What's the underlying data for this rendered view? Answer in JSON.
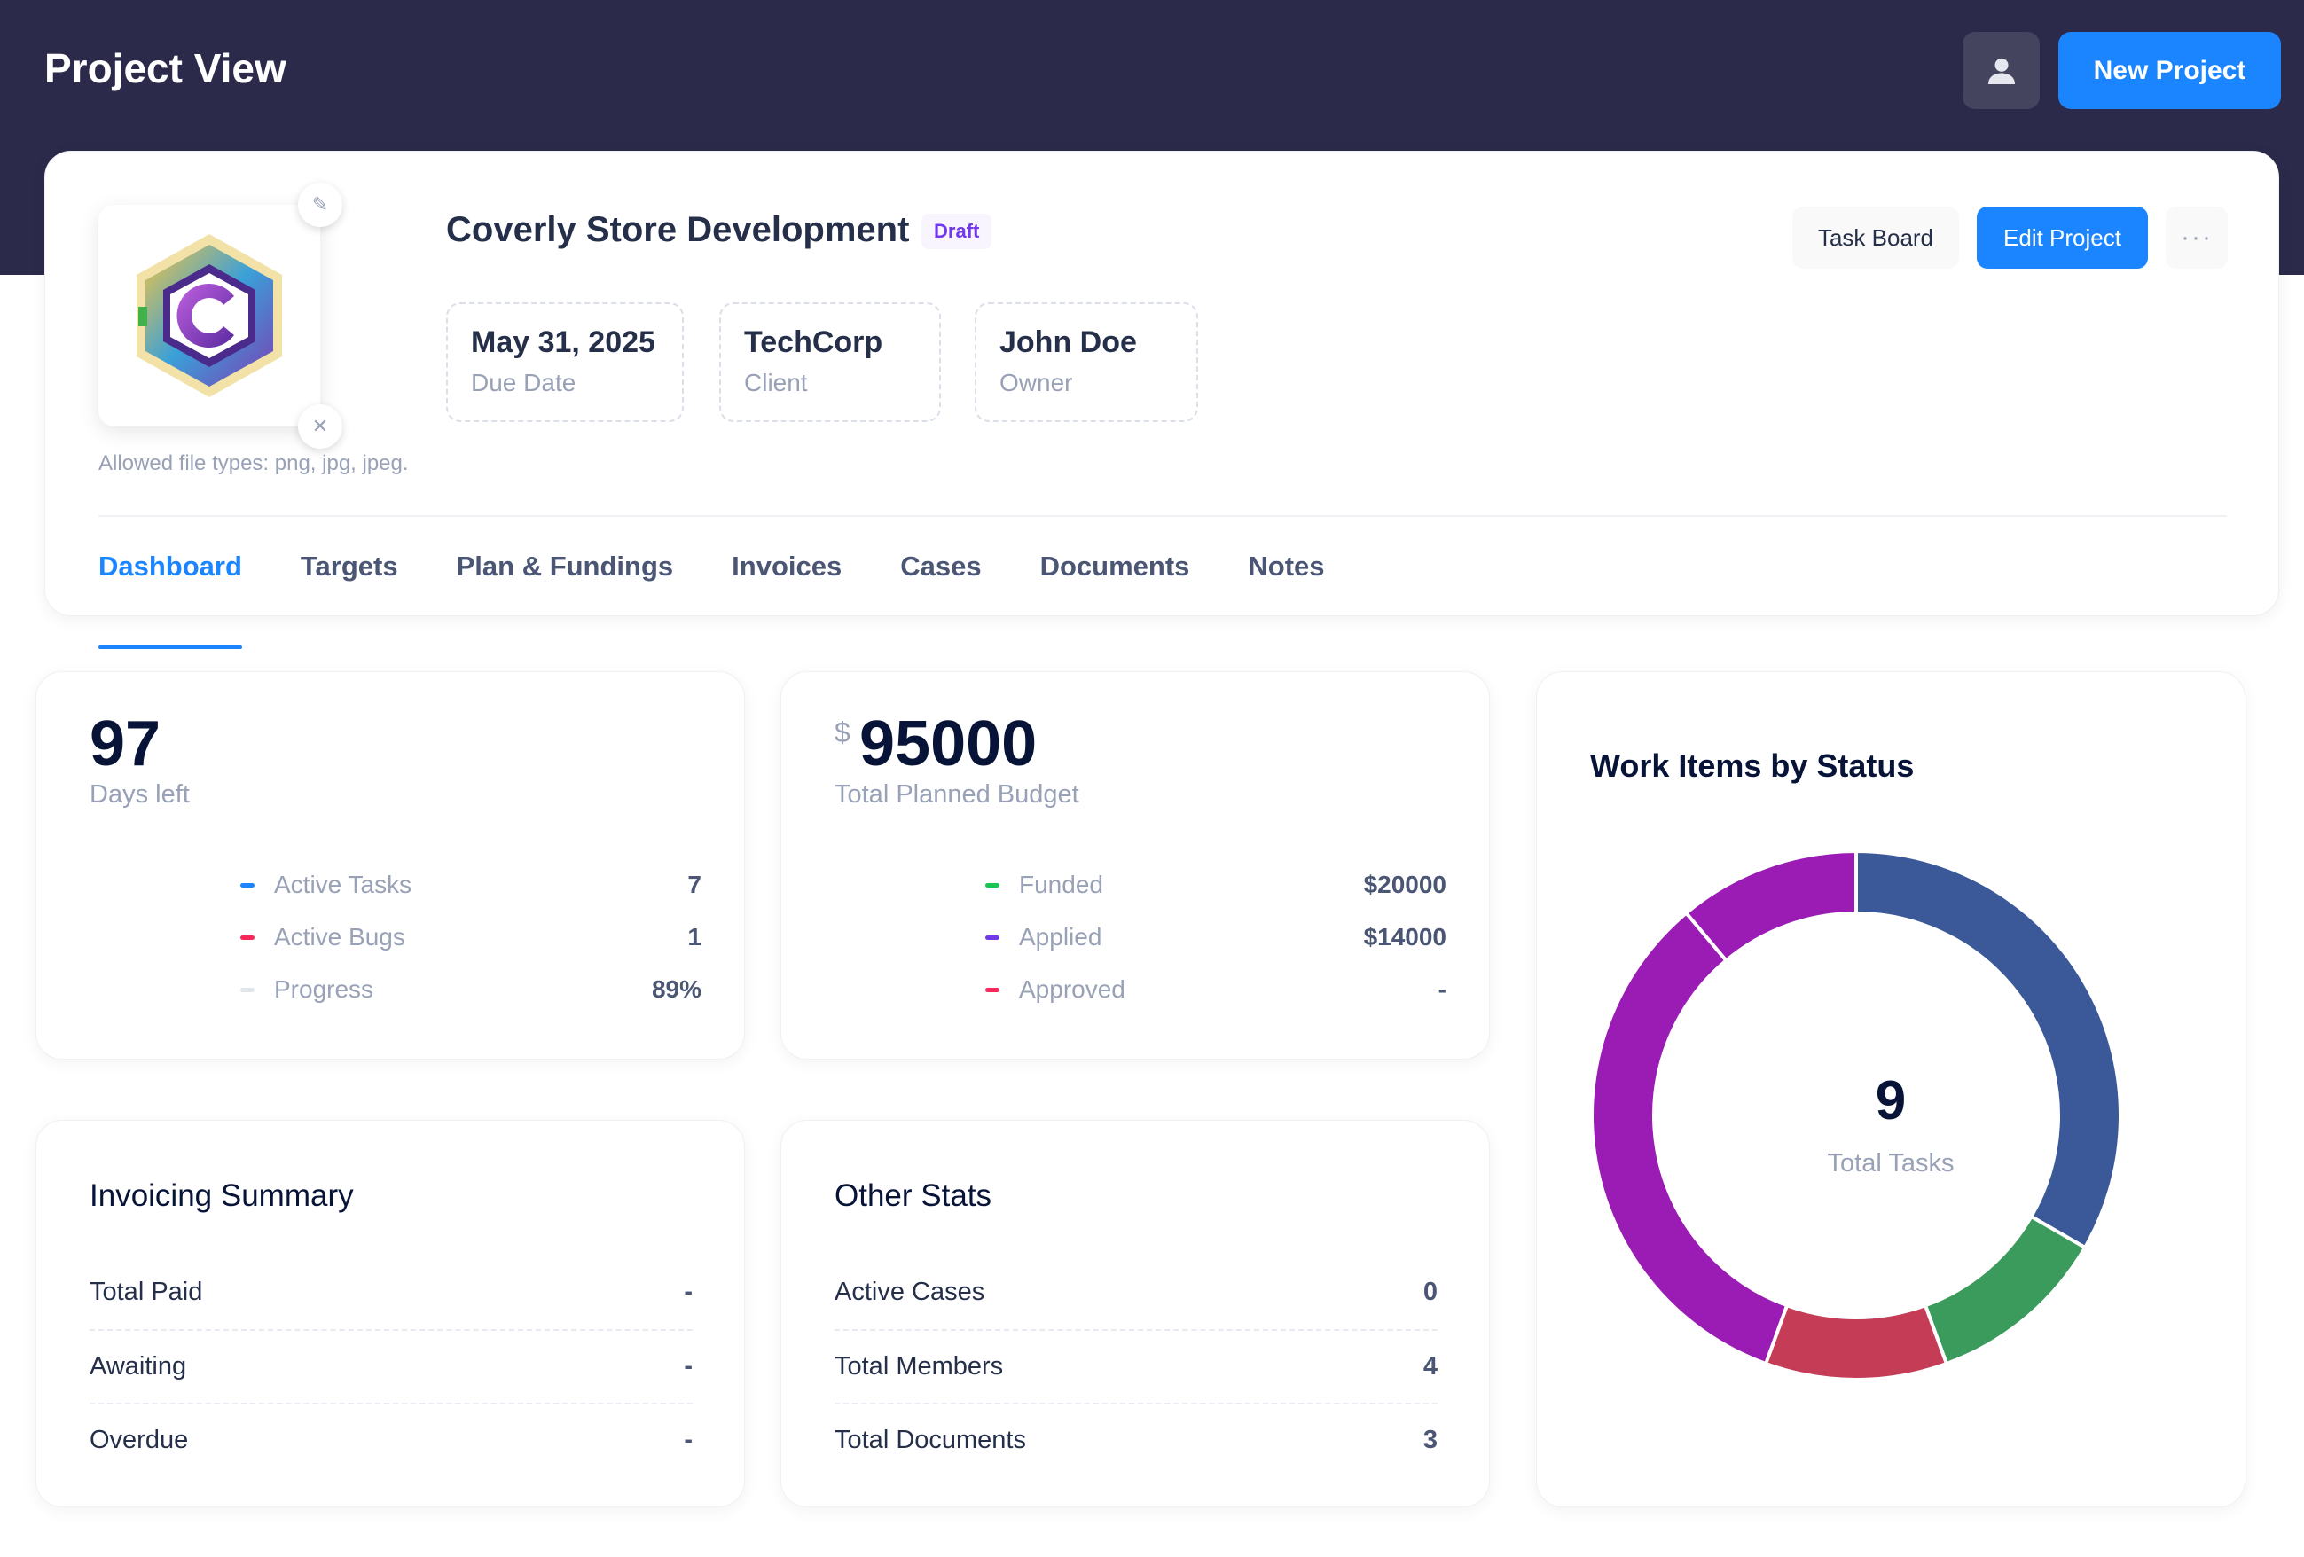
{
  "header": {
    "title": "Project View",
    "new_project_label": "New Project",
    "user_icon": "user-icon"
  },
  "project": {
    "name": "Coverly Store Development",
    "status": "Draft",
    "allowed_types": "Allowed file types: png, jpg, jpeg.",
    "info": [
      {
        "value": "May 31, 2025",
        "label": "Due Date"
      },
      {
        "value": "TechCorp",
        "label": "Client"
      },
      {
        "value": "John Doe",
        "label": "Owner"
      }
    ],
    "actions": {
      "task_board": "Task Board",
      "edit_project": "Edit Project",
      "more": "···"
    }
  },
  "tabs": [
    "Dashboard",
    "Targets",
    "Plan & Fundings",
    "Invoices",
    "Cases",
    "Documents",
    "Notes"
  ],
  "days_card": {
    "value": "97",
    "label": "Days left",
    "rows": [
      {
        "label": "Active Tasks",
        "value": "7",
        "color": "#1b84ff"
      },
      {
        "label": "Active Bugs",
        "value": "1",
        "color": "#f8285a"
      },
      {
        "label": "Progress",
        "value": "89%",
        "color": "#e9edf3"
      }
    ]
  },
  "budget_card": {
    "currency": "$",
    "value": "95000",
    "label": "Total Planned Budget",
    "rows": [
      {
        "label": "Funded",
        "value": "$20000",
        "color": "#17c653"
      },
      {
        "label": "Applied",
        "value": "$14000",
        "color": "#7239ea"
      },
      {
        "label": "Approved",
        "value": "-",
        "color": "#f8285a"
      }
    ]
  },
  "invoicing": {
    "title": "Invoicing Summary",
    "rows": [
      {
        "label": "Total Paid",
        "value": "-"
      },
      {
        "label": "Awaiting",
        "value": "-"
      },
      {
        "label": "Overdue",
        "value": "-"
      }
    ]
  },
  "other_stats": {
    "title": "Other Stats",
    "rows": [
      {
        "label": "Active Cases",
        "value": "0"
      },
      {
        "label": "Total Members",
        "value": "4"
      },
      {
        "label": "Total Documents",
        "value": "3"
      }
    ]
  },
  "chart_data": {
    "type": "pie",
    "title": "Work Items by Status",
    "center_value": "9",
    "center_label": "Total Tasks",
    "slices": [
      {
        "value": 3,
        "color": "#3b5998"
      },
      {
        "value": 1,
        "color": "#3a9b5c"
      },
      {
        "value": 1,
        "color": "#c43c56"
      },
      {
        "value": 3,
        "color": "#9a1cb4"
      },
      {
        "value": 1,
        "color": "#9a1cb4"
      }
    ]
  }
}
